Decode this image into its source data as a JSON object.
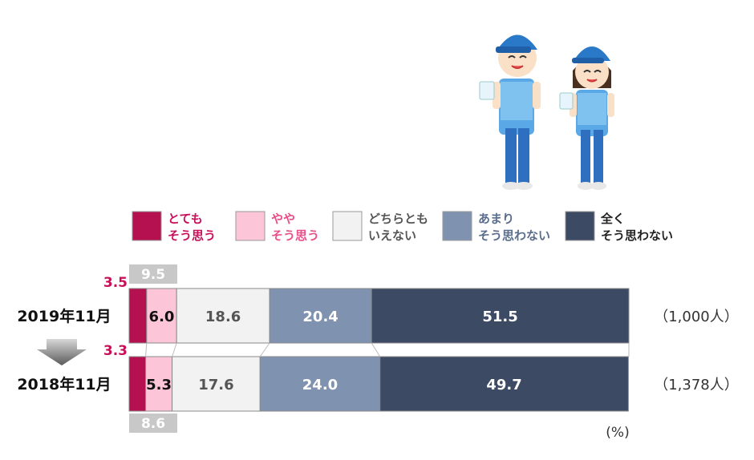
{
  "chart_data": {
    "type": "bar",
    "orientation": "horizontal",
    "stacked": true,
    "unit": "(%)",
    "legend_position": "top",
    "categories": [
      "2019年11月",
      "2018年11月"
    ],
    "sample_sizes": [
      "（1,000人）",
      "（1,378人）"
    ],
    "series": [
      {
        "name": "とても\nそう思う",
        "color": "#b5104f",
        "label_color": "#c8105a",
        "values": [
          3.5,
          3.3
        ]
      },
      {
        "name": "やや\nそう思う",
        "color": "#fcc5d8",
        "label_color": "#e8508a",
        "values": [
          6.0,
          5.3
        ]
      },
      {
        "name": "どちらとも\nいえない",
        "color": "#f2f2f2",
        "label_color": "#555555",
        "values": [
          18.6,
          17.6
        ]
      },
      {
        "name": "あまり\nそう思わない",
        "color": "#7f93b0",
        "label_color": "#5a6e8c",
        "values": [
          20.4,
          24.0
        ]
      },
      {
        "name": "全く\nそう思わない",
        "color": "#3d4a63",
        "label_color": "#222222",
        "values": [
          51.5,
          49.7
        ]
      }
    ],
    "subtotals": {
      "values": [
        "9.5",
        "8.6"
      ],
      "color": "#c8c8c8"
    }
  },
  "illustration": {
    "description_icon": "two-staff-holding-cups-icon",
    "shirt_color": "#4aa3df",
    "cap_color": "#2a78c8"
  }
}
